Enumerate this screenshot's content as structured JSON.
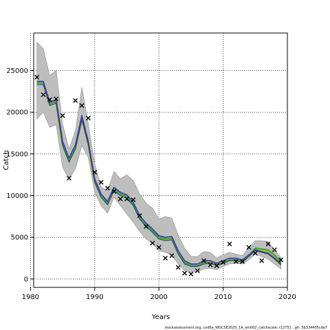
{
  "chart_data": {
    "type": "line",
    "title": "",
    "xlabel": "Years",
    "ylabel": "Catch",
    "xlim": [
      1980.5,
      2020
    ],
    "ylim": [
      -1000,
      29500
    ],
    "xticks": [
      1980,
      1990,
      2000,
      2010,
      2020
    ],
    "yticks": [
      0,
      5000,
      10000,
      15000,
      20000,
      25000
    ],
    "grid": true,
    "grid_style": "dotted",
    "footer": "stockassessment.org, cod6a_WGCSE2020_1A_am002_catchscale, r12751 , git: 5b334405cda7",
    "colors": {
      "ci_band": "#bebebe",
      "ci_border": "#8c8c8c",
      "observed_marker": "#000000",
      "series_green": "#3aa64a",
      "series_blue": "#3a3aa6",
      "series_olive": "#b4b432",
      "series_dark": "#2f4f4f"
    },
    "years": [
      1981,
      1982,
      1983,
      1984,
      1985,
      1986,
      1987,
      1988,
      1989,
      1990,
      1991,
      1992,
      1993,
      1994,
      1995,
      1996,
      1997,
      1998,
      1999,
      2000,
      2001,
      2002,
      2003,
      2004,
      2005,
      2006,
      2007,
      2008,
      2009,
      2010,
      2011,
      2012,
      2013,
      2014,
      2015,
      2016,
      2017,
      2018,
      2019
    ],
    "ci_upper": [
      28400,
      27600,
      24400,
      25000,
      18600,
      15600,
      17800,
      23000,
      18600,
      13800,
      11000,
      10600,
      12900,
      12000,
      12500,
      11800,
      10200,
      9100,
      8500,
      7200,
      7500,
      7300,
      5300,
      3700,
      2700,
      2700,
      3300,
      3200,
      2500,
      2900,
      3200,
      3000,
      2800,
      3800,
      4600,
      4600,
      4500,
      3500,
      2600
    ],
    "ci_lower": [
      19200,
      20000,
      18200,
      18500,
      13400,
      12000,
      13200,
      16000,
      14600,
      10400,
      8800,
      7900,
      9800,
      8800,
      7800,
      6800,
      5700,
      4800,
      4300,
      3400,
      3200,
      2900,
      1800,
      1000,
      800,
      900,
      1200,
      1300,
      1100,
      1500,
      1800,
      1900,
      1800,
      2300,
      3000,
      2700,
      2400,
      1800,
      1200
    ],
    "series": [
      {
        "values": [
          23500,
          23500,
          21000,
          21300,
          16200,
          14200,
          15800,
          19300,
          16300,
          11800,
          10000,
          9100,
          10800,
          10200,
          9900,
          9000,
          7400,
          6500,
          5800,
          5000,
          4800,
          4900,
          3200,
          2000,
          1600,
          1600,
          2000,
          2000,
          1700,
          2000,
          2300,
          2300,
          2100,
          2800,
          3600,
          3500,
          3400,
          2700,
          1900
        ]
      },
      {
        "values": [
          23500,
          23500,
          21000,
          21300,
          16200,
          14200,
          15800,
          19300,
          16300,
          11800,
          10000,
          9100,
          10800,
          10200,
          9900,
          9000,
          7400,
          6500,
          5800,
          5000,
          4800,
          4900,
          3200,
          2000,
          1600,
          1600,
          2000,
          2000,
          1700,
          2000,
          2300,
          2300,
          2100,
          2800,
          3700,
          3600,
          3500,
          2900,
          2000
        ]
      },
      {
        "values": [
          23700,
          23700,
          21200,
          21500,
          16500,
          14500,
          16100,
          19600,
          16500,
          12000,
          10200,
          9300,
          11000,
          10400,
          10100,
          9200,
          7600,
          6700,
          6000,
          5200,
          5000,
          5100,
          3400,
          2200,
          1800,
          1800,
          2200,
          2200,
          1900,
          2200,
          2500,
          2500,
          2300,
          2900,
          3500,
          3300,
          3100,
          2500,
          1800
        ]
      },
      {
        "values": [
          23300,
          23300,
          20800,
          21100,
          16000,
          14000,
          15600,
          19100,
          16100,
          11600,
          9800,
          8900,
          10600,
          10000,
          9700,
          8800,
          7200,
          6300,
          5600,
          4800,
          4600,
          4700,
          3000,
          1800,
          1500,
          1500,
          1800,
          1900,
          1600,
          1900,
          2200,
          2200,
          2000,
          2700,
          3400,
          3200,
          3000,
          2400,
          1700
        ]
      }
    ],
    "observed": {
      "x": [
        1981,
        1982,
        1983,
        1984,
        1985,
        1986,
        1987,
        1988,
        1989,
        1990,
        1991,
        1992,
        1993,
        1994,
        1995,
        1996,
        1997,
        1998,
        1999,
        2000,
        2001,
        2002,
        2003,
        2004,
        2005,
        2006,
        2007,
        2008,
        2009,
        2010,
        2011,
        2012,
        2013,
        2014,
        2015,
        2016,
        2017,
        2018,
        2019
      ],
      "y": [
        24200,
        22100,
        21500,
        21600,
        19600,
        12100,
        21400,
        20800,
        19300,
        12800,
        11600,
        10900,
        10500,
        9600,
        9600,
        9500,
        7600,
        6300,
        4300,
        3800,
        2500,
        2800,
        1400,
        700,
        600,
        1000,
        2200,
        1700,
        1600,
        2000,
        4200,
        2100,
        2100,
        3800,
        3100,
        2200,
        4200,
        3500,
        2300
      ]
    }
  }
}
